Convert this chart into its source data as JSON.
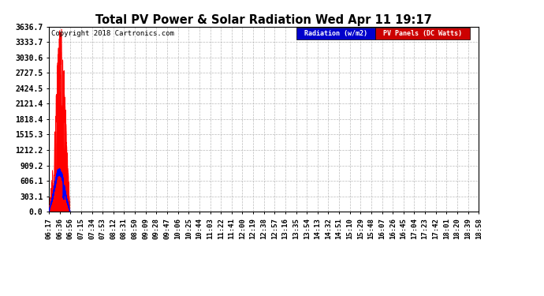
{
  "title": "Total PV Power & Solar Radiation Wed Apr 11 19:17",
  "copyright_text": "Copyright 2018 Cartronics.com",
  "legend_labels": [
    "Radiation (w/m2)",
    "PV Panels (DC Watts)"
  ],
  "legend_colors": [
    "#0000ff",
    "#ff0000"
  ],
  "bg_color": "#ffffff",
  "plot_bg_color": "#ffffff",
  "grid_color": "#aaaaaa",
  "fill_color": "#ff0000",
  "line_color": "#0000ff",
  "ytick_values": [
    0.0,
    303.1,
    606.1,
    909.2,
    1212.2,
    1515.3,
    1818.4,
    2121.4,
    2424.5,
    2727.5,
    3030.6,
    3333.7,
    3636.7
  ],
  "ymax": 3636.7,
  "ymin": 0.0,
  "xtick_labels": [
    "06:17",
    "06:36",
    "06:56",
    "07:15",
    "07:34",
    "07:53",
    "08:12",
    "08:31",
    "08:50",
    "09:09",
    "09:28",
    "09:47",
    "10:06",
    "10:25",
    "10:44",
    "11:03",
    "11:22",
    "11:41",
    "12:00",
    "12:19",
    "12:38",
    "12:57",
    "13:16",
    "13:35",
    "13:54",
    "14:13",
    "14:32",
    "14:51",
    "15:10",
    "15:29",
    "15:48",
    "16:07",
    "16:26",
    "16:45",
    "17:04",
    "17:23",
    "17:42",
    "18:01",
    "18:20",
    "18:39",
    "18:58"
  ]
}
